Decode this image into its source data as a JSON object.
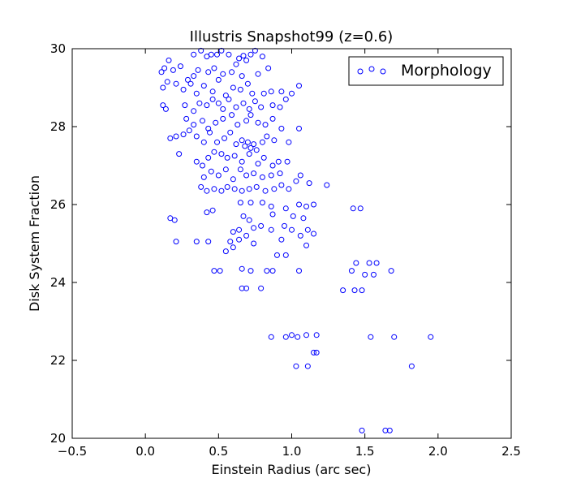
{
  "chart_data": {
    "type": "scatter",
    "title": "Illustris Snapshot99 (z=0.6)",
    "xlabel": "Einstein Radius (arc sec)",
    "ylabel": "Disk System Fraction",
    "xlim": [
      -0.5,
      2.5
    ],
    "ylim": [
      20,
      30
    ],
    "xticks": [
      -0.5,
      0.0,
      0.5,
      1.0,
      1.5,
      2.0,
      2.5
    ],
    "xtick_labels": [
      "−0.5",
      "0.0",
      "0.5",
      "1.0",
      "1.5",
      "2.0",
      "2.5"
    ],
    "yticks": [
      20,
      22,
      24,
      26,
      28,
      30
    ],
    "ytick_labels": [
      "20",
      "22",
      "24",
      "26",
      "28",
      "30"
    ],
    "legend_position": "top-right",
    "grid": false,
    "colors": {
      "marker": "#0000ff",
      "axes": "#000000",
      "background": "#ffffff"
    },
    "series": [
      {
        "name": "Morphology",
        "marker": "open-circle",
        "points": [
          [
            0.33,
            29.85
          ],
          [
            0.38,
            29.95
          ],
          [
            0.42,
            29.8
          ],
          [
            0.45,
            29.85
          ],
          [
            0.49,
            29.85
          ],
          [
            0.52,
            29.95
          ],
          [
            0.57,
            29.85
          ],
          [
            0.64,
            29.75
          ],
          [
            0.67,
            29.82
          ],
          [
            0.72,
            29.85
          ],
          [
            0.75,
            29.95
          ],
          [
            0.8,
            29.8
          ],
          [
            0.11,
            29.4
          ],
          [
            0.13,
            29.5
          ],
          [
            0.16,
            29.7
          ],
          [
            0.19,
            29.45
          ],
          [
            0.24,
            29.55
          ],
          [
            0.29,
            29.2
          ],
          [
            0.33,
            29.3
          ],
          [
            0.36,
            29.45
          ],
          [
            0.43,
            29.4
          ],
          [
            0.47,
            29.5
          ],
          [
            0.53,
            29.35
          ],
          [
            0.59,
            29.4
          ],
          [
            0.62,
            29.6
          ],
          [
            0.66,
            29.3
          ],
          [
            0.69,
            29.7
          ],
          [
            0.77,
            29.35
          ],
          [
            0.84,
            29.5
          ],
          [
            0.12,
            29.0
          ],
          [
            0.15,
            29.15
          ],
          [
            0.21,
            29.1
          ],
          [
            0.26,
            28.95
          ],
          [
            0.31,
            29.1
          ],
          [
            0.35,
            28.85
          ],
          [
            0.4,
            29.05
          ],
          [
            0.46,
            28.9
          ],
          [
            0.5,
            29.2
          ],
          [
            0.55,
            28.8
          ],
          [
            0.6,
            29.0
          ],
          [
            0.65,
            28.95
          ],
          [
            0.7,
            29.1
          ],
          [
            0.73,
            28.85
          ],
          [
            0.81,
            28.85
          ],
          [
            0.86,
            28.9
          ],
          [
            0.93,
            28.9
          ],
          [
            1.0,
            28.85
          ],
          [
            1.05,
            29.05
          ],
          [
            0.12,
            28.55
          ],
          [
            0.14,
            28.45
          ],
          [
            0.27,
            28.55
          ],
          [
            0.33,
            28.4
          ],
          [
            0.37,
            28.6
          ],
          [
            0.42,
            28.55
          ],
          [
            0.46,
            28.7
          ],
          [
            0.5,
            28.6
          ],
          [
            0.53,
            28.45
          ],
          [
            0.57,
            28.7
          ],
          [
            0.62,
            28.5
          ],
          [
            0.67,
            28.6
          ],
          [
            0.71,
            28.45
          ],
          [
            0.75,
            28.65
          ],
          [
            0.79,
            28.5
          ],
          [
            0.87,
            28.55
          ],
          [
            0.92,
            28.5
          ],
          [
            0.96,
            28.7
          ],
          [
            0.28,
            28.2
          ],
          [
            0.33,
            28.05
          ],
          [
            0.39,
            28.15
          ],
          [
            0.43,
            27.95
          ],
          [
            0.48,
            28.1
          ],
          [
            0.53,
            28.2
          ],
          [
            0.59,
            28.3
          ],
          [
            0.63,
            28.05
          ],
          [
            0.69,
            28.15
          ],
          [
            0.72,
            28.3
          ],
          [
            0.77,
            28.1
          ],
          [
            0.82,
            28.05
          ],
          [
            0.87,
            28.2
          ],
          [
            0.17,
            27.7
          ],
          [
            0.21,
            27.75
          ],
          [
            0.26,
            27.8
          ],
          [
            0.3,
            27.9
          ],
          [
            0.35,
            27.75
          ],
          [
            0.4,
            27.6
          ],
          [
            0.44,
            27.85
          ],
          [
            0.49,
            27.6
          ],
          [
            0.54,
            27.7
          ],
          [
            0.58,
            27.85
          ],
          [
            0.62,
            27.55
          ],
          [
            0.66,
            27.65
          ],
          [
            0.68,
            27.5
          ],
          [
            0.7,
            27.6
          ],
          [
            0.72,
            27.45
          ],
          [
            0.74,
            27.55
          ],
          [
            0.76,
            27.4
          ],
          [
            0.8,
            27.6
          ],
          [
            0.83,
            27.75
          ],
          [
            0.88,
            27.65
          ],
          [
            0.93,
            27.95
          ],
          [
            0.98,
            27.6
          ],
          [
            1.05,
            27.95
          ],
          [
            0.23,
            27.3
          ],
          [
            0.35,
            27.1
          ],
          [
            0.39,
            27.0
          ],
          [
            0.43,
            27.2
          ],
          [
            0.47,
            27.35
          ],
          [
            0.52,
            27.3
          ],
          [
            0.56,
            27.2
          ],
          [
            0.61,
            27.25
          ],
          [
            0.66,
            27.1
          ],
          [
            0.71,
            27.3
          ],
          [
            0.77,
            27.05
          ],
          [
            0.81,
            27.2
          ],
          [
            0.87,
            27.0
          ],
          [
            0.91,
            27.1
          ],
          [
            0.97,
            27.1
          ],
          [
            0.4,
            26.7
          ],
          [
            0.45,
            26.85
          ],
          [
            0.5,
            26.75
          ],
          [
            0.55,
            26.9
          ],
          [
            0.6,
            26.65
          ],
          [
            0.65,
            26.9
          ],
          [
            0.69,
            26.75
          ],
          [
            0.74,
            26.8
          ],
          [
            0.8,
            26.7
          ],
          [
            0.86,
            26.75
          ],
          [
            0.92,
            26.8
          ],
          [
            1.03,
            26.6
          ],
          [
            1.06,
            26.75
          ],
          [
            1.12,
            26.55
          ],
          [
            1.24,
            26.5
          ],
          [
            0.38,
            26.45
          ],
          [
            0.42,
            26.35
          ],
          [
            0.47,
            26.4
          ],
          [
            0.52,
            26.35
          ],
          [
            0.56,
            26.45
          ],
          [
            0.61,
            26.4
          ],
          [
            0.66,
            26.35
          ],
          [
            0.71,
            26.4
          ],
          [
            0.76,
            26.45
          ],
          [
            0.82,
            26.35
          ],
          [
            0.88,
            26.4
          ],
          [
            0.93,
            26.5
          ],
          [
            0.98,
            26.4
          ],
          [
            0.65,
            26.05
          ],
          [
            0.72,
            26.05
          ],
          [
            0.8,
            26.05
          ],
          [
            0.86,
            25.95
          ],
          [
            0.96,
            25.9
          ],
          [
            1.05,
            26.0
          ],
          [
            1.1,
            25.95
          ],
          [
            1.15,
            26.0
          ],
          [
            0.17,
            25.65
          ],
          [
            0.2,
            25.6
          ],
          [
            0.42,
            25.8
          ],
          [
            0.46,
            25.85
          ],
          [
            0.67,
            25.7
          ],
          [
            0.71,
            25.6
          ],
          [
            0.87,
            25.75
          ],
          [
            1.01,
            25.7
          ],
          [
            1.08,
            25.65
          ],
          [
            1.42,
            25.9
          ],
          [
            1.47,
            25.9
          ],
          [
            0.6,
            25.3
          ],
          [
            0.64,
            25.35
          ],
          [
            0.69,
            25.2
          ],
          [
            0.74,
            25.4
          ],
          [
            0.79,
            25.45
          ],
          [
            0.86,
            25.35
          ],
          [
            0.95,
            25.45
          ],
          [
            1.0,
            25.35
          ],
          [
            1.06,
            25.2
          ],
          [
            1.11,
            25.35
          ],
          [
            1.15,
            25.25
          ],
          [
            0.21,
            25.05
          ],
          [
            0.35,
            25.05
          ],
          [
            0.43,
            25.05
          ],
          [
            0.58,
            25.05
          ],
          [
            0.64,
            25.1
          ],
          [
            0.74,
            25.0
          ],
          [
            0.93,
            25.1
          ],
          [
            1.1,
            24.95
          ],
          [
            0.55,
            24.8
          ],
          [
            0.6,
            24.9
          ],
          [
            0.9,
            24.7
          ],
          [
            0.96,
            24.7
          ],
          [
            1.44,
            24.5
          ],
          [
            1.53,
            24.5
          ],
          [
            1.58,
            24.5
          ],
          [
            0.47,
            24.3
          ],
          [
            0.51,
            24.3
          ],
          [
            0.66,
            24.35
          ],
          [
            0.72,
            24.3
          ],
          [
            0.83,
            24.3
          ],
          [
            0.87,
            24.3
          ],
          [
            1.05,
            24.3
          ],
          [
            1.41,
            24.3
          ],
          [
            1.5,
            24.2
          ],
          [
            1.56,
            24.2
          ],
          [
            1.68,
            24.3
          ],
          [
            0.66,
            23.85
          ],
          [
            0.69,
            23.85
          ],
          [
            0.79,
            23.85
          ],
          [
            1.35,
            23.8
          ],
          [
            1.43,
            23.8
          ],
          [
            1.48,
            23.8
          ],
          [
            0.86,
            22.6
          ],
          [
            0.96,
            22.6
          ],
          [
            1.0,
            22.65
          ],
          [
            1.04,
            22.6
          ],
          [
            1.1,
            22.65
          ],
          [
            1.17,
            22.65
          ],
          [
            1.54,
            22.6
          ],
          [
            1.7,
            22.6
          ],
          [
            1.95,
            22.6
          ],
          [
            1.15,
            22.2
          ],
          [
            1.17,
            22.2
          ],
          [
            1.03,
            21.85
          ],
          [
            1.11,
            21.85
          ],
          [
            1.82,
            21.85
          ],
          [
            1.48,
            20.2
          ],
          [
            1.64,
            20.2
          ],
          [
            1.67,
            20.2
          ]
        ]
      }
    ]
  }
}
